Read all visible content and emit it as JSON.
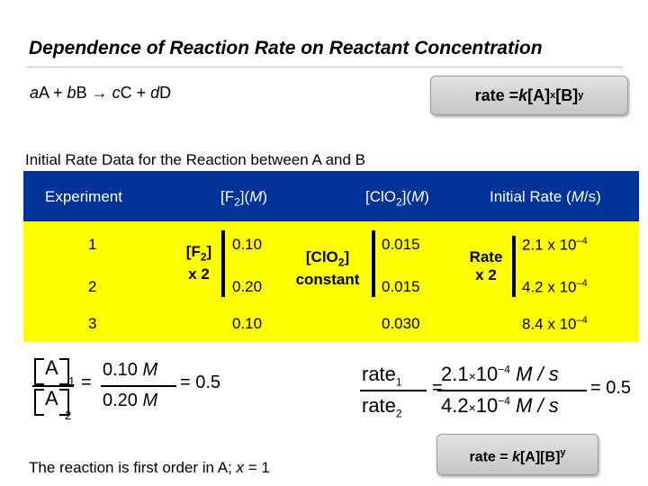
{
  "title": "Dependence of Reaction Rate on Reactant Concentration",
  "equation": {
    "coef_a": "a",
    "sp_a": "A + ",
    "coef_b": "b",
    "sp_b": "B → ",
    "coef_c": "c",
    "sp_c": "C + ",
    "coef_d": "d",
    "sp_d": "D"
  },
  "rate_law": {
    "prefix": "rate = ",
    "k": "k",
    "a": "[A]",
    "x": "x",
    "b": "[B]",
    "y": "y"
  },
  "subtitle": "Initial Rate Data for the Reaction between A and B",
  "table": {
    "headers": {
      "experiment": "Experiment",
      "f2_main": "[F",
      "f2_sub": "2",
      "f2_close": "](",
      "f2_unit": "M",
      "f2_end": ")",
      "clo2_main": "[ClO",
      "clo2_sub": "2",
      "clo2_close": "](",
      "clo2_unit": "M",
      "clo2_end": ")",
      "rate_main": "Initial Rate (",
      "rate_unit": "M",
      "rate_end": "/s)"
    },
    "rows": [
      {
        "exp": "1",
        "f2": "0.10",
        "clo2": "0.015",
        "rate_base": "2.1 x 10",
        "rate_exp": "–4"
      },
      {
        "exp": "2",
        "f2": "0.20",
        "clo2": "0.015",
        "rate_base": "4.2 x 10",
        "rate_exp": "–4"
      },
      {
        "exp": "3",
        "f2": "0.10",
        "clo2": "0.030",
        "rate_base": "8.4 x 10",
        "rate_exp": "–4"
      }
    ],
    "labels": {
      "f2_main": "[F",
      "f2_sub": "2",
      "f2_close": "]",
      "f2_mult": "x 2",
      "clo2_main": "[ClO",
      "clo2_sub": "2",
      "clo2_close": "]",
      "clo2_const": "constant",
      "rate_word": "Rate",
      "rate_mult": "x 2"
    }
  },
  "ratio_a": {
    "a_letter": "A",
    "sub1": "1",
    "sub2": "2",
    "num": "0.10",
    "den": "0.20",
    "unit": "M",
    "eq": "= 0.5"
  },
  "ratio_rate": {
    "rate1": "rate",
    "sub1": "1",
    "rate2": "rate",
    "sub2": "2",
    "num_a": "2.1",
    "num_b": "10",
    "num_exp": "−4",
    "den_a": "4.2",
    "den_b": "10",
    "den_exp": "−4",
    "times": "×",
    "unit": "M / s",
    "eq": "= 0.5"
  },
  "conclusion": {
    "text": "The reaction is first order in A; ",
    "var": "x",
    "tail": " = 1"
  },
  "rate_final": {
    "prefix": "rate = ",
    "k": "k",
    "a": "[A][B]",
    "y": "y"
  }
}
